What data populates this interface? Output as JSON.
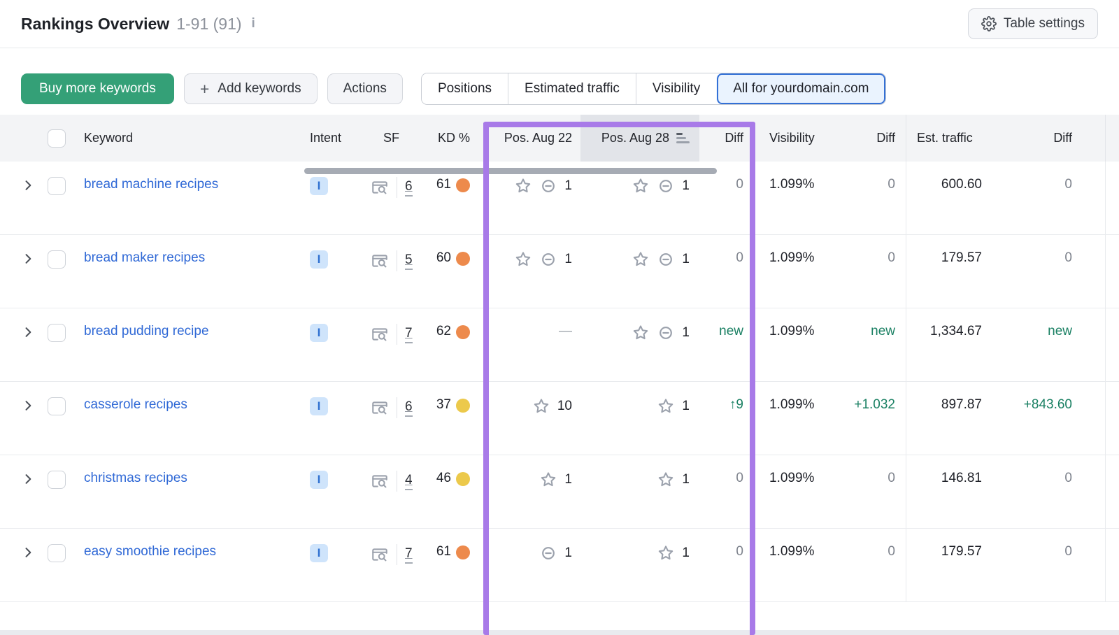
{
  "header": {
    "title": "Rankings Overview",
    "count": "1-91 (91)",
    "info_icon": "info-icon",
    "table_settings_label": "Table settings"
  },
  "toolbar": {
    "buy_button": "Buy more keywords",
    "add_button": "Add keywords",
    "actions_button": "Actions",
    "view_tabs": [
      {
        "label": "Positions",
        "selected": false
      },
      {
        "label": "Estimated traffic",
        "selected": false
      },
      {
        "label": "Visibility",
        "selected": false
      },
      {
        "label": "All for yourdomain.com",
        "selected": true
      }
    ]
  },
  "table": {
    "columns": {
      "keyword": "Keyword",
      "intent": "Intent",
      "sf": "SF",
      "kd": "KD %",
      "pos_a": "Pos. Aug 22",
      "pos_b": "Pos. Aug 28",
      "diff_pos": "Diff",
      "visibility": "Visibility",
      "diff_vis": "Diff",
      "est_traffic": "Est. traffic",
      "diff_traffic": "Diff"
    },
    "sorted_column": "Pos. Aug 28",
    "rows": [
      {
        "keyword": "bread machine recipes",
        "intent": "I",
        "sf": "6",
        "kd": "61",
        "kd_level": "orange",
        "pos_aug22": {
          "star": true,
          "link": true,
          "value": "1"
        },
        "pos_aug28": {
          "star": true,
          "link": true,
          "value": "1"
        },
        "pos_diff": {
          "text": "0",
          "positive": false
        },
        "visibility": "1.099%",
        "vis_diff": {
          "text": "0",
          "positive": false
        },
        "est_traffic": "600.60",
        "traffic_diff": {
          "text": "0",
          "positive": false
        }
      },
      {
        "keyword": "bread maker recipes",
        "intent": "I",
        "sf": "5",
        "kd": "60",
        "kd_level": "orange",
        "pos_aug22": {
          "star": true,
          "link": true,
          "value": "1"
        },
        "pos_aug28": {
          "star": true,
          "link": true,
          "value": "1"
        },
        "pos_diff": {
          "text": "0",
          "positive": false
        },
        "visibility": "1.099%",
        "vis_diff": {
          "text": "0",
          "positive": false
        },
        "est_traffic": "179.57",
        "traffic_diff": {
          "text": "0",
          "positive": false
        }
      },
      {
        "keyword": "bread pudding recipe",
        "intent": "I",
        "sf": "7",
        "kd": "62",
        "kd_level": "orange",
        "pos_aug22": {
          "dash": true
        },
        "pos_aug28": {
          "star": true,
          "link": true,
          "value": "1"
        },
        "pos_diff": {
          "text": "new",
          "positive": true
        },
        "visibility": "1.099%",
        "vis_diff": {
          "text": "new",
          "positive": true
        },
        "est_traffic": "1,334.67",
        "traffic_diff": {
          "text": "new",
          "positive": true
        }
      },
      {
        "keyword": "casserole recipes",
        "intent": "I",
        "sf": "6",
        "kd": "37",
        "kd_level": "yellow",
        "pos_aug22": {
          "star": true,
          "link": false,
          "value": "10"
        },
        "pos_aug28": {
          "star": true,
          "link": false,
          "value": "1"
        },
        "pos_diff": {
          "text": "↑9",
          "positive": true
        },
        "visibility": "1.099%",
        "vis_diff": {
          "text": "+1.032",
          "positive": true
        },
        "est_traffic": "897.87",
        "traffic_diff": {
          "text": "+843.60",
          "positive": true
        }
      },
      {
        "keyword": "christmas recipes",
        "intent": "I",
        "sf": "4",
        "kd": "46",
        "kd_level": "yellow",
        "pos_aug22": {
          "star": true,
          "link": false,
          "value": "1"
        },
        "pos_aug28": {
          "star": true,
          "link": false,
          "value": "1"
        },
        "pos_diff": {
          "text": "0",
          "positive": false
        },
        "visibility": "1.099%",
        "vis_diff": {
          "text": "0",
          "positive": false
        },
        "est_traffic": "146.81",
        "traffic_diff": {
          "text": "0",
          "positive": false
        }
      },
      {
        "keyword": "easy smoothie recipes",
        "intent": "I",
        "sf": "7",
        "kd": "61",
        "kd_level": "orange",
        "pos_aug22": {
          "star": false,
          "link": true,
          "value": "1"
        },
        "pos_aug28": {
          "star": true,
          "link": false,
          "value": "1"
        },
        "pos_diff": {
          "text": "0",
          "positive": false
        },
        "visibility": "1.099%",
        "vis_diff": {
          "text": "0",
          "positive": false
        },
        "est_traffic": "179.57",
        "traffic_diff": {
          "text": "0",
          "positive": false
        }
      }
    ]
  },
  "colors": {
    "green_button": "#34a077",
    "green_text": "#1a8063",
    "link_blue": "#3069d6",
    "highlight_purple": "#a87ae8",
    "kd_orange": "#ed8a4c",
    "kd_yellow": "#ecc94b"
  }
}
